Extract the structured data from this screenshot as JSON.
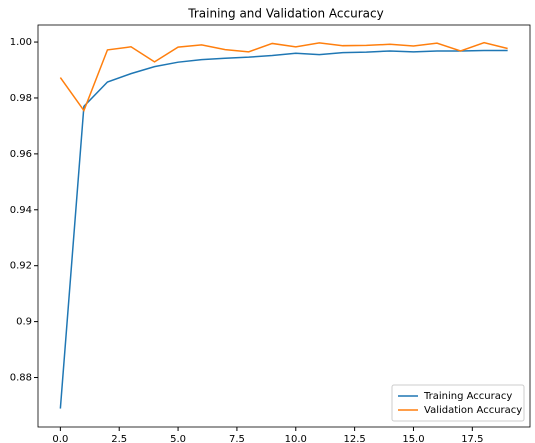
{
  "chart_data": {
    "type": "line",
    "title": "Training and Validation Accuracy",
    "x": [
      0,
      1,
      2,
      3,
      4,
      5,
      6,
      7,
      8,
      9,
      10,
      11,
      12,
      13,
      14,
      15,
      16,
      17,
      18,
      19
    ],
    "series": [
      {
        "name": "Training Accuracy",
        "color": "#1f77b4",
        "values": [
          0.8689,
          0.977,
          0.9857,
          0.9887,
          0.9912,
          0.9928,
          0.9937,
          0.9942,
          0.9946,
          0.9952,
          0.996,
          0.9955,
          0.9962,
          0.9964,
          0.9968,
          0.9965,
          0.9968,
          0.9968,
          0.997,
          0.997
        ]
      },
      {
        "name": "Validation Accuracy",
        "color": "#ff7f0e",
        "values": [
          0.9873,
          0.9755,
          0.9972,
          0.9983,
          0.9929,
          0.9982,
          0.999,
          0.9973,
          0.9965,
          0.9995,
          0.9983,
          0.9997,
          0.9987,
          0.9988,
          0.9992,
          0.9986,
          0.9996,
          0.9968,
          0.9998,
          0.9977
        ]
      }
    ],
    "xlim": [
      -0.95,
      19.95
    ],
    "xticks": [
      {
        "value": 0,
        "label": "0.0"
      },
      2.5,
      {
        "value": 5,
        "label": "5.0"
      },
      7.5,
      {
        "value": 10,
        "label": "10.0"
      },
      12.5,
      {
        "value": 15,
        "label": "15.0"
      },
      17.5
    ],
    "ylim": [
      0.8623,
      1.0061
    ],
    "yticks": [
      0.88,
      0.9,
      0.92,
      0.94,
      0.96,
      0.98,
      {
        "value": 1,
        "label": "1.00"
      }
    ],
    "legend": "lower right"
  }
}
